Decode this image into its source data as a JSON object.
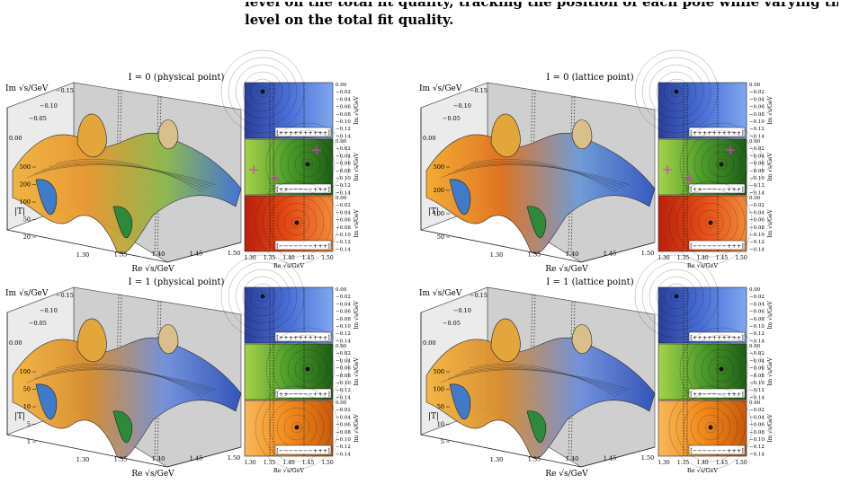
{
  "caption": {
    "line1": "level on the total fit quality, tracking the position of each pole while varying the energy",
    "line2": "level on the total fit quality."
  },
  "panels": [
    {
      "title": "I = 0 (physical point)",
      "im_axis_label": "Im √s/GeV",
      "im_ticks": [
        "−0.15",
        "−0.10",
        "−0.05",
        "0.00"
      ],
      "t_axis_label": "|T|",
      "t_ticks": [
        "500",
        "200",
        "100",
        "50",
        "20"
      ],
      "re_ticks": [
        "1.30",
        "1.35",
        "1.40",
        "1.45",
        "1.50"
      ],
      "re_axis_label": "Re √s/GeV",
      "theme": "warm",
      "sheets": [
        {
          "label": "[++++++++++]",
          "scheme": "blue"
        },
        {
          "label": "[++−−−−−+++]",
          "scheme": "green",
          "markers": true
        },
        {
          "label": "[−−−−−−−+++]",
          "scheme": "red"
        }
      ]
    },
    {
      "title": "I = 0 (lattice point)",
      "im_axis_label": "Im √s/GeV",
      "im_ticks": [
        "−0.15",
        "−0.10",
        "−0.05",
        "0.00"
      ],
      "t_axis_label": "|T|",
      "t_ticks": [
        "500",
        "200",
        "100",
        "50"
      ],
      "re_ticks": [
        "1.30",
        "1.35",
        "1.40",
        "1.45",
        "1.50"
      ],
      "re_axis_label": "Re √s/GeV",
      "theme": "orange",
      "sheets": [
        {
          "label": "[++++++++++]",
          "scheme": "blue"
        },
        {
          "label": "[++−−−−−+++]",
          "scheme": "green",
          "markers": true
        },
        {
          "label": "[−−−−−−−+++]",
          "scheme": "red"
        }
      ]
    },
    {
      "title": "I = 1 (physical point)",
      "im_axis_label": "Im √s/GeV",
      "im_ticks": [
        "−0.15",
        "−0.10",
        "−0.05",
        "0.00"
      ],
      "t_axis_label": "|T|",
      "t_ticks": [
        "100",
        "50",
        "10",
        "5",
        "1"
      ],
      "re_ticks": [
        "1.30",
        "1.35",
        "1.40",
        "1.45",
        "1.50"
      ],
      "re_axis_label": "Re √s/GeV",
      "theme": "cool",
      "sheets": [
        {
          "label": "[++++++++++]",
          "scheme": "blue"
        },
        {
          "label": "[++−−−−−+++]",
          "scheme": "green"
        },
        {
          "label": "[−−−−−−−+++]",
          "scheme": "orange"
        }
      ]
    },
    {
      "title": "I = 1 (lattice point)",
      "im_axis_label": "Im √s/GeV",
      "im_ticks": [
        "−0.15",
        "−0.10",
        "−0.05",
        "0.00"
      ],
      "t_axis_label": "|T|",
      "t_ticks": [
        "500",
        "100",
        "50",
        "10",
        "5"
      ],
      "re_ticks": [
        "1.30",
        "1.35",
        "1.40",
        "1.45",
        "1.50"
      ],
      "re_axis_label": "Re √s/GeV",
      "theme": "cool",
      "sheets": [
        {
          "label": "[++++++++++]",
          "scheme": "blue"
        },
        {
          "label": "[++−−−−−+++]",
          "scheme": "green"
        },
        {
          "label": "[−−−−−−−+++]",
          "scheme": "orange"
        }
      ]
    }
  ],
  "colorbar_ticks": [
    "0.00",
    "−0.02",
    "−0.04",
    "−0.06",
    "−0.08",
    "−0.10",
    "−0.12",
    "−0.14"
  ],
  "colorbar_label": "Im √s/GeV",
  "heatmap_re_ticks": [
    "1.30",
    "1.35",
    "1.40",
    "1.45",
    "1.50"
  ],
  "heatmap_re_label": "Re √s/GeV",
  "colors": {
    "wall": "#cfcfcf",
    "blue": [
      "#2a3f9a",
      "#4a6fd6",
      "#7fa6ef"
    ],
    "green": [
      "#1f5e16",
      "#4c9c2a",
      "#a6d24a"
    ],
    "red": [
      "#b8200c",
      "#e54b16",
      "#f08a3a"
    ],
    "orange": [
      "#c85a0c",
      "#f08a1c",
      "#f7b85a"
    ],
    "marker": "#d63cc8"
  }
}
